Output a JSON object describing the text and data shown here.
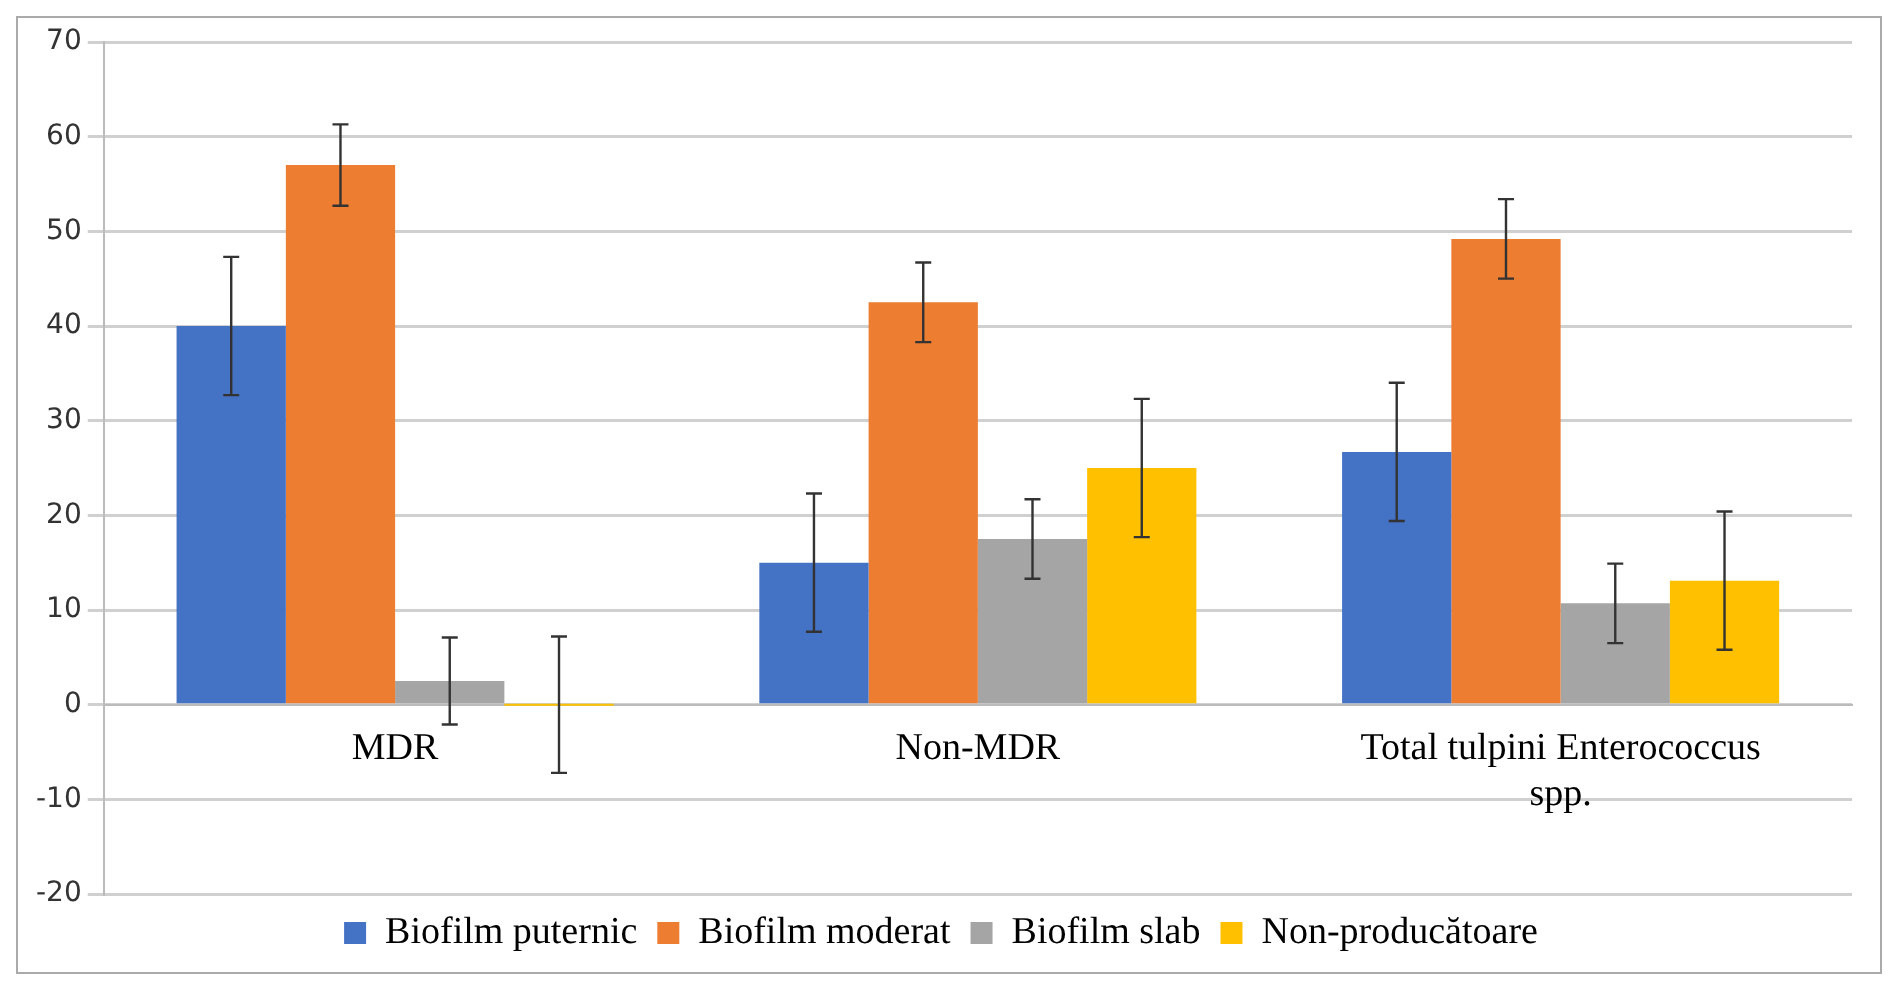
{
  "chart_data": {
    "type": "bar",
    "categories": [
      "MDR",
      "Non-MDR",
      "Total tulpini Enterococcus spp."
    ],
    "series": [
      {
        "name": "Biofilm puternic",
        "color": "#4472c4",
        "values": [
          40,
          15,
          26.7
        ],
        "errors": [
          7.3,
          7.3,
          7.3
        ]
      },
      {
        "name": "Biofilm moderat",
        "color": "#ed7d31",
        "values": [
          57,
          42.5,
          49.2
        ],
        "errors": [
          4.3,
          4.2,
          4.2
        ]
      },
      {
        "name": "Biofilm slab",
        "color": "#a5a5a5",
        "values": [
          2.5,
          17.5,
          10.7
        ],
        "errors": [
          4.6,
          4.2,
          4.2
        ]
      },
      {
        "name": "Non-producătoare",
        "color": "#ffc000",
        "values": [
          0,
          25,
          13.1
        ],
        "errors": [
          7.2,
          7.3,
          7.3
        ]
      }
    ],
    "ylim": [
      -20,
      70
    ],
    "yticks": [
      -20,
      -10,
      0,
      10,
      20,
      30,
      40,
      50,
      60,
      70
    ],
    "grid": "y",
    "legend": "bottom"
  }
}
